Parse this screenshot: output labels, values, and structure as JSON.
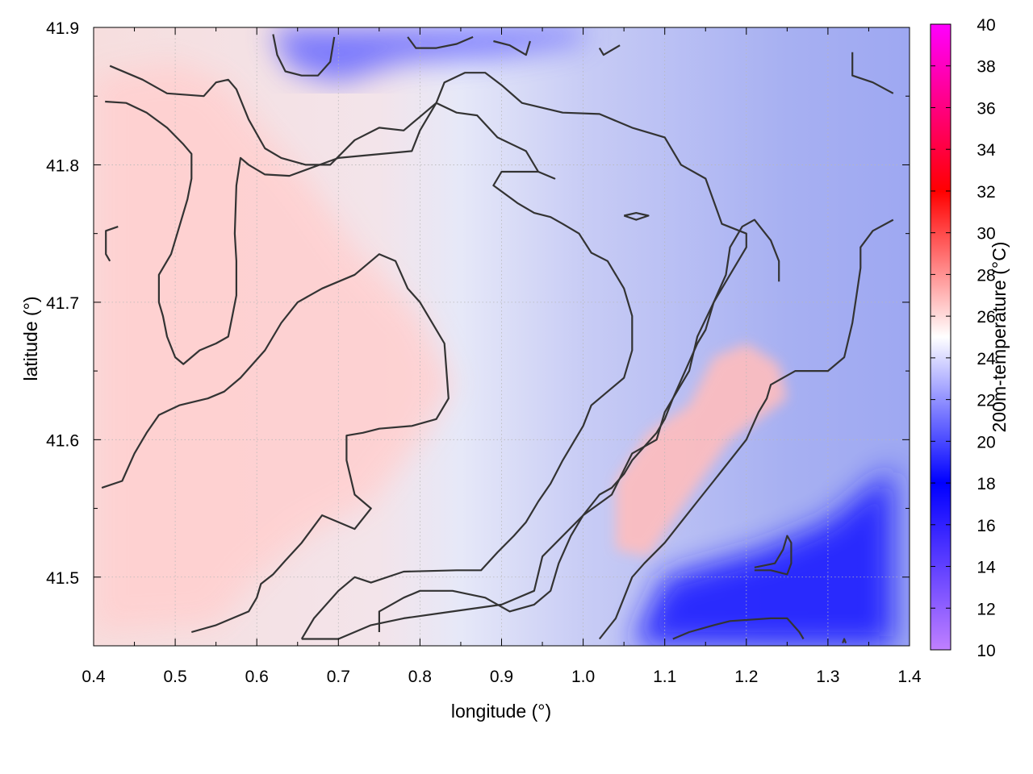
{
  "chart_data": {
    "type": "heatmap",
    "title": "",
    "xlabel": "longitude (°)",
    "ylabel": "latitude (°)",
    "colorbar_label": "200m-temperature (°C)",
    "xlim": [
      0.4,
      1.4
    ],
    "ylim": [
      41.45,
      41.9
    ],
    "x_ticks": [
      "0.4",
      "0.5",
      "0.6",
      "0.7",
      "0.8",
      "0.9",
      "1.0",
      "1.1",
      "1.2",
      "1.3",
      "1.4"
    ],
    "y_ticks": [
      "41.5",
      "41.6",
      "41.7",
      "41.8",
      "41.9"
    ],
    "colorbar_ticks": [
      "10",
      "12",
      "14",
      "16",
      "18",
      "20",
      "22",
      "24",
      "26",
      "28",
      "30",
      "32",
      "34",
      "36",
      "38",
      "40"
    ],
    "colorbar_range": [
      10,
      40
    ],
    "grid": true,
    "colorscale": [
      {
        "value": 10,
        "color": "#c080ff"
      },
      {
        "value": 18,
        "color": "#0000ff"
      },
      {
        "value": 25,
        "color": "#ffffff"
      },
      {
        "value": 32,
        "color": "#ff0000"
      },
      {
        "value": 40,
        "color": "#ff00ff"
      }
    ],
    "contour_color": "#333333",
    "warm_regions": [
      {
        "name": "western warm zone",
        "points": [
          [
            0.4,
            41.865
          ],
          [
            0.5,
            41.875
          ],
          [
            0.56,
            41.86
          ],
          [
            0.6,
            41.83
          ],
          [
            0.66,
            41.79
          ],
          [
            0.72,
            41.74
          ],
          [
            0.8,
            41.69
          ],
          [
            0.84,
            41.64
          ],
          [
            0.8,
            41.6
          ],
          [
            0.74,
            41.555
          ],
          [
            0.66,
            41.53
          ],
          [
            0.6,
            41.5
          ],
          [
            0.55,
            41.465
          ],
          [
            0.4,
            41.46
          ]
        ],
        "temperature": 26.3
      },
      {
        "name": "eastern warm spot",
        "points": [
          [
            1.04,
            41.57
          ],
          [
            1.08,
            41.605
          ],
          [
            1.13,
            41.625
          ],
          [
            1.16,
            41.66
          ],
          [
            1.2,
            41.67
          ],
          [
            1.24,
            41.655
          ],
          [
            1.25,
            41.63
          ],
          [
            1.18,
            41.6
          ],
          [
            1.12,
            41.55
          ],
          [
            1.08,
            41.515
          ],
          [
            1.04,
            41.52
          ]
        ],
        "temperature": 26.8
      },
      {
        "name": "southeast cold zone",
        "points": [
          [
            1.06,
            41.45
          ],
          [
            1.1,
            41.5
          ],
          [
            1.22,
            41.52
          ],
          [
            1.3,
            41.54
          ],
          [
            1.38,
            41.58
          ],
          [
            1.38,
            41.45
          ]
        ],
        "temperature": 18.8
      },
      {
        "name": "north cold zone",
        "points": [
          [
            0.62,
            41.895
          ],
          [
            0.64,
            41.87
          ],
          [
            0.7,
            41.86
          ],
          [
            0.78,
            41.875
          ],
          [
            0.9,
            41.88
          ],
          [
            1.0,
            41.89
          ],
          [
            1.0,
            41.9
          ],
          [
            0.62,
            41.9
          ]
        ],
        "temperature": 21.0
      }
    ],
    "contours": [
      [
        [
          0.42,
          41.872
        ],
        [
          0.46,
          41.862
        ],
        [
          0.49,
          41.852
        ],
        [
          0.535,
          41.85
        ],
        [
          0.55,
          41.86
        ],
        [
          0.565,
          41.862
        ],
        [
          0.575,
          41.855
        ],
        [
          0.59,
          41.833
        ],
        [
          0.61,
          41.812
        ],
        [
          0.63,
          41.805
        ],
        [
          0.66,
          41.8
        ],
        [
          0.69,
          41.8
        ],
        [
          0.72,
          41.818
        ],
        [
          0.75,
          41.827
        ],
        [
          0.78,
          41.825
        ],
        [
          0.8,
          41.835
        ],
        [
          0.82,
          41.845
        ],
        [
          0.83,
          41.86
        ],
        [
          0.855,
          41.867
        ],
        [
          0.88,
          41.867
        ],
        [
          0.9,
          41.858
        ],
        [
          0.925,
          41.845
        ],
        [
          0.975,
          41.838
        ],
        [
          1.02,
          41.837
        ],
        [
          1.06,
          41.827
        ],
        [
          1.1,
          41.82
        ],
        [
          1.12,
          41.8
        ],
        [
          1.15,
          41.79
        ],
        [
          1.17,
          41.757
        ],
        [
          1.2,
          41.75
        ],
        [
          1.2,
          41.74
        ],
        [
          1.175,
          41.715
        ],
        [
          1.16,
          41.7
        ],
        [
          1.14,
          41.675
        ],
        [
          1.13,
          41.65
        ],
        [
          1.1,
          41.62
        ],
        [
          1.09,
          41.6
        ],
        [
          1.06,
          41.59
        ],
        [
          1.035,
          41.56
        ],
        [
          1.0,
          41.545
        ],
        [
          0.95,
          41.515
        ],
        [
          0.94,
          41.49
        ],
        [
          0.9,
          41.48
        ],
        [
          0.84,
          41.475
        ],
        [
          0.78,
          41.47
        ],
        [
          0.74,
          41.465
        ],
        [
          0.7,
          41.455
        ],
        [
          0.655,
          41.455
        ]
      ],
      [
        [
          0.414,
          41.846
        ],
        [
          0.44,
          41.845
        ],
        [
          0.465,
          41.838
        ],
        [
          0.49,
          41.827
        ],
        [
          0.51,
          41.815
        ],
        [
          0.52,
          41.808
        ],
        [
          0.52,
          41.79
        ],
        [
          0.515,
          41.775
        ],
        [
          0.505,
          41.755
        ],
        [
          0.495,
          41.735
        ],
        [
          0.48,
          41.72
        ],
        [
          0.48,
          41.7
        ],
        [
          0.485,
          41.69
        ],
        [
          0.49,
          41.675
        ],
        [
          0.5,
          41.66
        ],
        [
          0.51,
          41.655
        ],
        [
          0.53,
          41.665
        ],
        [
          0.55,
          41.67
        ],
        [
          0.565,
          41.675
        ],
        [
          0.57,
          41.69
        ],
        [
          0.575,
          41.705
        ],
        [
          0.575,
          41.73
        ],
        [
          0.573,
          41.75
        ],
        [
          0.575,
          41.785
        ],
        [
          0.58,
          41.805
        ],
        [
          0.59,
          41.8
        ],
        [
          0.61,
          41.793
        ],
        [
          0.64,
          41.792
        ],
        [
          0.7,
          41.805
        ],
        [
          0.79,
          41.81
        ],
        [
          0.8,
          41.825
        ],
        [
          0.82,
          41.845
        ],
        [
          0.845,
          41.838
        ],
        [
          0.87,
          41.836
        ],
        [
          0.895,
          41.82
        ],
        [
          0.93,
          41.81
        ],
        [
          0.945,
          41.795
        ],
        [
          0.965,
          41.79
        ],
        [
          0.945,
          41.795
        ],
        [
          0.9,
          41.795
        ],
        [
          0.89,
          41.785
        ],
        [
          0.92,
          41.772
        ],
        [
          0.94,
          41.765
        ],
        [
          0.96,
          41.762
        ],
        [
          0.975,
          41.757
        ],
        [
          0.995,
          41.75
        ],
        [
          1.01,
          41.736
        ],
        [
          1.03,
          41.73
        ],
        [
          1.05,
          41.71
        ],
        [
          1.06,
          41.69
        ],
        [
          1.06,
          41.665
        ],
        [
          1.05,
          41.645
        ],
        [
          1.03,
          41.635
        ],
        [
          1.01,
          41.625
        ],
        [
          1.0,
          41.61
        ],
        [
          0.99,
          41.6
        ],
        [
          0.975,
          41.585
        ],
        [
          0.96,
          41.568
        ],
        [
          0.945,
          41.555
        ],
        [
          0.93,
          41.54
        ],
        [
          0.915,
          41.53
        ],
        [
          0.895,
          41.518
        ],
        [
          0.875,
          41.505
        ],
        [
          0.845,
          41.505
        ],
        [
          0.78,
          41.504
        ],
        [
          0.74,
          41.496
        ],
        [
          0.72,
          41.5
        ],
        [
          0.7,
          41.49
        ],
        [
          0.67,
          41.47
        ],
        [
          0.655,
          41.455
        ]
      ],
      [
        [
          0.41,
          41.565
        ],
        [
          0.435,
          41.57
        ],
        [
          0.45,
          41.59
        ],
        [
          0.465,
          41.605
        ],
        [
          0.48,
          41.618
        ],
        [
          0.505,
          41.625
        ],
        [
          0.54,
          41.63
        ],
        [
          0.56,
          41.635
        ],
        [
          0.58,
          41.645
        ],
        [
          0.61,
          41.665
        ],
        [
          0.63,
          41.685
        ],
        [
          0.65,
          41.7
        ],
        [
          0.68,
          41.71
        ],
        [
          0.72,
          41.72
        ],
        [
          0.75,
          41.735
        ],
        [
          0.77,
          41.73
        ],
        [
          0.785,
          41.71
        ],
        [
          0.8,
          41.7
        ],
        [
          0.81,
          41.69
        ],
        [
          0.83,
          41.67
        ],
        [
          0.835,
          41.63
        ],
        [
          0.82,
          41.615
        ],
        [
          0.79,
          41.61
        ],
        [
          0.75,
          41.608
        ],
        [
          0.73,
          41.605
        ],
        [
          0.71,
          41.603
        ],
        [
          0.71,
          41.585
        ],
        [
          0.72,
          41.56
        ],
        [
          0.74,
          41.55
        ],
        [
          0.72,
          41.535
        ],
        [
          0.7,
          41.54
        ],
        [
          0.68,
          41.545
        ],
        [
          0.655,
          41.525
        ],
        [
          0.635,
          41.512
        ],
        [
          0.62,
          41.502
        ],
        [
          0.605,
          41.495
        ],
        [
          0.6,
          41.485
        ],
        [
          0.59,
          41.475
        ],
        [
          0.57,
          41.47
        ],
        [
          0.55,
          41.465
        ],
        [
          0.52,
          41.46
        ]
      ],
      [
        [
          0.75,
          41.46
        ],
        [
          0.75,
          41.475
        ],
        [
          0.765,
          41.48
        ],
        [
          0.78,
          41.485
        ],
        [
          0.8,
          41.49
        ],
        [
          0.84,
          41.49
        ],
        [
          0.88,
          41.485
        ],
        [
          0.91,
          41.475
        ],
        [
          0.94,
          41.48
        ],
        [
          0.96,
          41.49
        ],
        [
          0.97,
          41.51
        ],
        [
          0.985,
          41.53
        ],
        [
          1.0,
          41.545
        ],
        [
          1.02,
          41.56
        ],
        [
          1.035,
          41.565
        ],
        [
          1.05,
          41.575
        ],
        [
          1.06,
          41.585
        ],
        [
          1.075,
          41.595
        ],
        [
          1.09,
          41.605
        ],
        [
          1.1,
          41.615
        ],
        [
          1.11,
          41.63
        ],
        [
          1.125,
          41.65
        ],
        [
          1.14,
          41.67
        ],
        [
          1.15,
          41.68
        ],
        [
          1.16,
          41.7
        ],
        [
          1.175,
          41.72
        ],
        [
          1.18,
          41.74
        ],
        [
          1.195,
          41.755
        ],
        [
          1.21,
          41.76
        ],
        [
          1.23,
          41.745
        ],
        [
          1.24,
          41.73
        ],
        [
          1.24,
          41.715
        ]
      ],
      [
        [
          1.02,
          41.455
        ],
        [
          1.04,
          41.47
        ],
        [
          1.05,
          41.485
        ],
        [
          1.06,
          41.5
        ],
        [
          1.075,
          41.51
        ],
        [
          1.1,
          41.525
        ],
        [
          1.12,
          41.54
        ],
        [
          1.14,
          41.555
        ],
        [
          1.16,
          41.57
        ],
        [
          1.18,
          41.585
        ],
        [
          1.2,
          41.6
        ],
        [
          1.215,
          41.62
        ],
        [
          1.225,
          41.63
        ],
        [
          1.23,
          41.64
        ],
        [
          1.245,
          41.645
        ],
        [
          1.26,
          41.65
        ],
        [
          1.28,
          41.65
        ],
        [
          1.3,
          41.65
        ],
        [
          1.32,
          41.66
        ],
        [
          1.33,
          41.685
        ],
        [
          1.335,
          41.705
        ],
        [
          1.34,
          41.725
        ],
        [
          1.34,
          41.74
        ],
        [
          1.355,
          41.752
        ],
        [
          1.38,
          41.76
        ]
      ],
      [
        [
          1.11,
          41.455
        ],
        [
          1.13,
          41.46
        ],
        [
          1.16,
          41.465
        ],
        [
          1.18,
          41.468
        ],
        [
          1.23,
          41.47
        ],
        [
          1.25,
          41.47
        ],
        [
          1.265,
          41.46
        ],
        [
          1.27,
          41.455
        ]
      ],
      [
        [
          1.21,
          41.505
        ],
        [
          1.23,
          41.505
        ],
        [
          1.25,
          41.502
        ],
        [
          1.255,
          41.51
        ],
        [
          1.255,
          41.525
        ],
        [
          1.25,
          41.53
        ],
        [
          1.245,
          41.52
        ],
        [
          1.235,
          41.51
        ],
        [
          1.21,
          41.507
        ]
      ],
      [
        [
          0.43,
          41.755
        ],
        [
          0.415,
          41.752
        ],
        [
          0.415,
          41.735
        ],
        [
          0.42,
          41.73
        ]
      ],
      [
        [
          1.05,
          41.763
        ],
        [
          1.065,
          41.765
        ],
        [
          1.08,
          41.763
        ],
        [
          1.065,
          41.76
        ],
        [
          1.05,
          41.763
        ]
      ],
      [
        [
          1.33,
          41.882
        ],
        [
          1.33,
          41.865
        ],
        [
          1.355,
          41.86
        ],
        [
          1.38,
          41.852
        ]
      ],
      [
        [
          0.62,
          41.895
        ],
        [
          0.625,
          41.88
        ],
        [
          0.635,
          41.868
        ],
        [
          0.655,
          41.865
        ],
        [
          0.675,
          41.865
        ],
        [
          0.69,
          41.875
        ],
        [
          0.695,
          41.893
        ]
      ],
      [
        [
          0.785,
          41.893
        ],
        [
          0.795,
          41.885
        ],
        [
          0.82,
          41.885
        ],
        [
          0.845,
          41.888
        ],
        [
          0.865,
          41.893
        ]
      ],
      [
        [
          0.89,
          41.89
        ],
        [
          0.91,
          41.887
        ],
        [
          0.93,
          41.88
        ],
        [
          0.935,
          41.89
        ]
      ],
      [
        [
          1.02,
          41.885
        ],
        [
          1.025,
          41.88
        ],
        [
          1.045,
          41.887
        ]
      ],
      [
        [
          1.318,
          41.452
        ],
        [
          1.32,
          41.455
        ],
        [
          1.322,
          41.452
        ]
      ]
    ]
  }
}
